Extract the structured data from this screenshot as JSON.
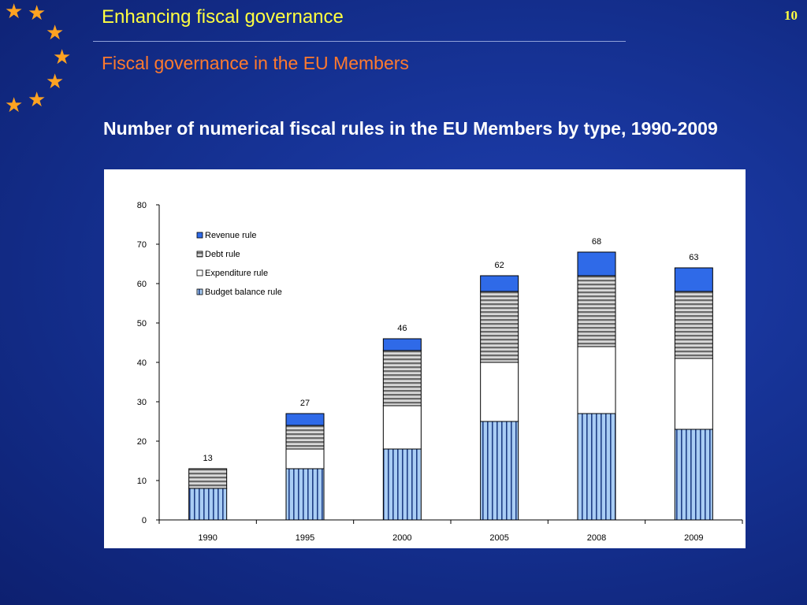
{
  "slide": {
    "title": "Enhancing fiscal governance",
    "subtitle": "Fiscal governance in the EU Members",
    "page_number": "10",
    "heading": "Number of numerical fiscal rules in the EU Members by type, 1990-2009",
    "star_icon": "★"
  },
  "colors": {
    "background": "#142f8e",
    "title": "#ffff40",
    "subtitle": "#ff7a2e",
    "star": "#ffa321",
    "revenue_rule": "#2f6ae8",
    "debt_rule": "#8a8a8a",
    "expenditure_rule": "#ffffff",
    "budget_balance_rule": "#a9cdf4"
  },
  "chart_data": {
    "type": "bar",
    "stacked": true,
    "title": "Number of numerical fiscal rules in the EU Members by type, 1990-2009",
    "xlabel": "",
    "ylabel": "",
    "ylim": [
      0,
      80
    ],
    "yticks": [
      0,
      10,
      20,
      30,
      40,
      50,
      60,
      70,
      80
    ],
    "grid": false,
    "legend_position": "top-left",
    "categories": [
      "1990",
      "1995",
      "2000",
      "2005",
      "2008",
      "2009"
    ],
    "series": [
      {
        "name": "Budget balance rule",
        "values": [
          8,
          13,
          18,
          25,
          27,
          23
        ],
        "color": "#a9cdf4",
        "pattern": "vertical-stripes"
      },
      {
        "name": "Expenditure rule",
        "values": [
          0,
          5,
          11,
          15,
          17,
          18
        ],
        "color": "#ffffff",
        "pattern": "solid"
      },
      {
        "name": "Debt rule",
        "values": [
          5,
          6,
          14,
          18,
          18,
          17
        ],
        "color": "#8a8a8a",
        "pattern": "horizontal-stripes"
      },
      {
        "name": "Revenue rule",
        "values": [
          0,
          3,
          3,
          4,
          6,
          6
        ],
        "color": "#2f6ae8",
        "pattern": "solid"
      }
    ],
    "total_labels": [
      "13",
      "27",
      "46",
      "62",
      "68",
      "63"
    ],
    "legend_order": [
      "Revenue rule",
      "Debt rule",
      "Expenditure rule",
      "Budget balance rule"
    ]
  }
}
